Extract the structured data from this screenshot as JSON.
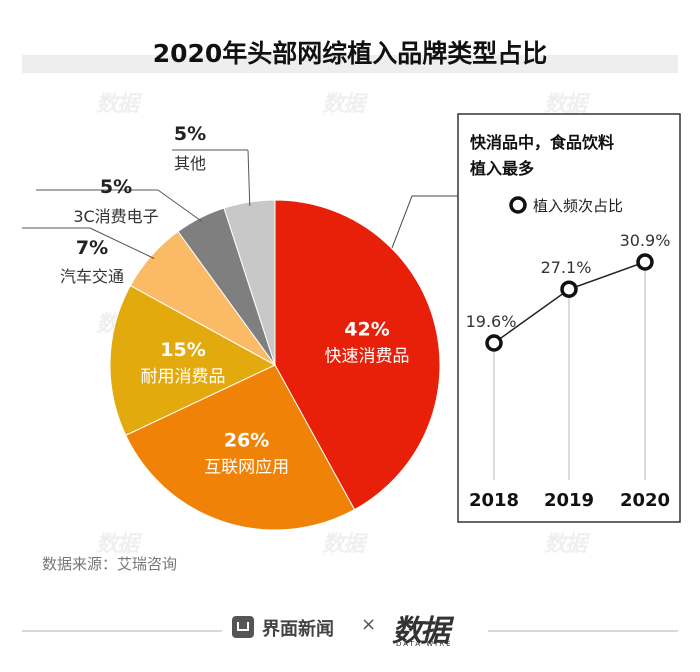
{
  "title": "2020年头部网综植入品牌类型占比",
  "source": "数据来源：艾瑞咨询",
  "footer": {
    "brand": "界面新闻",
    "times": "×",
    "logo": "数据",
    "logo_sub": "DATA WIRE"
  },
  "watermark": "数据",
  "colors": {
    "fmcg": "#e8200a",
    "internet": "#f08307",
    "durable": "#e3aa0e",
    "auto": "#fbba66",
    "threec": "#7f7f7f",
    "other": "#c8c8c8",
    "line": "#222222"
  },
  "chart_data": [
    {
      "type": "pie",
      "title": "2020年头部网综植入品牌类型占比",
      "slices": [
        {
          "label": "快速消费品",
          "value": 42,
          "pct": "42%",
          "color": "#e8200a"
        },
        {
          "label": "互联网应用",
          "value": 26,
          "pct": "26%",
          "color": "#f08307"
        },
        {
          "label": "耐用消费品",
          "value": 15,
          "pct": "15%",
          "color": "#e3aa0e"
        },
        {
          "label": "汽车交通",
          "value": 7,
          "pct": "7%",
          "color": "#fbba66"
        },
        {
          "label": "3C消费电子",
          "value": 5,
          "pct": "5%",
          "color": "#7f7f7f"
        },
        {
          "label": "其他",
          "value": 5,
          "pct": "5%",
          "color": "#c8c8c8"
        }
      ]
    },
    {
      "type": "line",
      "title": "快消品中，食品饮料植入最多",
      "title_lines": [
        "快消品中，食品饮料",
        "植入最多"
      ],
      "legend": "植入频次占比",
      "categories": [
        "2018",
        "2019",
        "2020"
      ],
      "values": [
        19.6,
        27.1,
        30.9
      ],
      "labels": [
        "19.6%",
        "27.1%",
        "30.9%"
      ],
      "ylim": [
        15,
        32
      ]
    }
  ]
}
